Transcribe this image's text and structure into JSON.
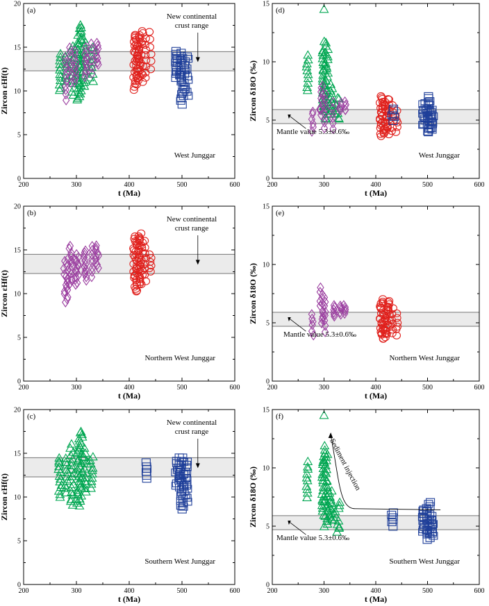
{
  "chart_data": [
    {
      "panel": "(a)",
      "type": "scatter",
      "title": "West Junggar",
      "xlabel": "t (Ma)",
      "ylabel": "Zircon εHf(t)",
      "xlim": [
        200,
        600
      ],
      "ylim": [
        0,
        20
      ],
      "xticks": [
        200,
        300,
        400,
        500,
        600
      ],
      "yticks": [
        0,
        5,
        10,
        15,
        20
      ],
      "band": {
        "y": [
          12.3,
          14.5
        ],
        "label_lines": [
          "New continental",
          "crust range"
        ]
      },
      "clusters": [
        {
          "color": "#00a651",
          "marker": "triangle",
          "ranges": [
            [
              268,
              270,
              10.0,
              14.3,
              12
            ],
            [
              278,
              282,
              11.0,
              14.0,
              8
            ],
            [
              290,
              296,
              9.5,
              15.2,
              14
            ],
            [
              300,
              310,
              9.0,
              17.5,
              40
            ],
            [
              312,
              318,
              10.5,
              16.0,
              14
            ],
            [
              325,
              332,
              11.0,
              15.0,
              10
            ]
          ]
        },
        {
          "color": "#9b3fa0",
          "marker": "diamond",
          "ranges": [
            [
              278,
              282,
              9.0,
              13.8,
              10
            ],
            [
              286,
              290,
              11.0,
              15.0,
              8
            ],
            [
              296,
              300,
              11.0,
              14.5,
              10
            ],
            [
              316,
              320,
              11.5,
              15.0,
              10
            ],
            [
              328,
              330,
              12.0,
              15.5,
              6
            ],
            [
              338,
              342,
              13.0,
              15.5,
              8
            ]
          ]
        },
        {
          "color": "#e0211d",
          "marker": "circle",
          "ranges": [
            [
              408,
              416,
              10.2,
              16.5,
              30
            ],
            [
              416,
              426,
              11.0,
              16.8,
              30
            ],
            [
              428,
              432,
              11.5,
              16.0,
              8
            ],
            [
              438,
              442,
              12.5,
              16.8,
              6
            ]
          ]
        },
        {
          "color": "#1f3f99",
          "marker": "square",
          "ranges": [
            [
              488,
              496,
              11.5,
              14.5,
              14
            ],
            [
              496,
              504,
              8.5,
              14.3,
              22
            ],
            [
              504,
              512,
              9.5,
              14.0,
              14
            ]
          ]
        }
      ]
    },
    {
      "panel": "(b)",
      "type": "scatter",
      "title": "Northern West Junggar",
      "xlabel": "t (Ma)",
      "ylabel": "Zircon εHf(t)",
      "xlim": [
        200,
        600
      ],
      "ylim": [
        0,
        20
      ],
      "xticks": [
        200,
        300,
        400,
        500,
        600
      ],
      "yticks": [
        0,
        5,
        10,
        15,
        20
      ],
      "band": {
        "y": [
          12.3,
          14.5
        ],
        "label_lines": [
          "New continental",
          "crust range"
        ]
      },
      "clusters": [
        {
          "color": "#9b3fa0",
          "marker": "diamond",
          "ranges": [
            [
              276,
              284,
              9.0,
              14.0,
              18
            ],
            [
              286,
              292,
              11.0,
              15.5,
              12
            ],
            [
              296,
              304,
              11.0,
              14.5,
              14
            ],
            [
              314,
              320,
              11.5,
              15.0,
              12
            ],
            [
              328,
              332,
              12.0,
              15.5,
              8
            ],
            [
              336,
              342,
              13.0,
              15.5,
              10
            ]
          ]
        },
        {
          "color": "#e0211d",
          "marker": "circle",
          "ranges": [
            [
              408,
              416,
              10.2,
              16.5,
              30
            ],
            [
              416,
              426,
              11.0,
              16.8,
              30
            ],
            [
              428,
              432,
              11.5,
              16.0,
              8
            ],
            [
              438,
              442,
              12.5,
              14.5,
              6
            ]
          ]
        }
      ]
    },
    {
      "panel": "(c)",
      "type": "scatter",
      "title": "Southern West Junggar",
      "xlabel": "t (Ma)",
      "ylabel": "Zircon εHf(t)",
      "xlim": [
        200,
        600
      ],
      "ylim": [
        0,
        20
      ],
      "xticks": [
        200,
        300,
        400,
        500,
        600
      ],
      "yticks": [
        0,
        5,
        10,
        15,
        20
      ],
      "band": {
        "y": [
          12.3,
          14.5
        ],
        "label_lines": [
          "New continental",
          "crust range"
        ]
      },
      "clusters": [
        {
          "color": "#00a651",
          "marker": "triangle",
          "ranges": [
            [
              266,
              272,
              10.0,
              14.5,
              14
            ],
            [
              278,
              284,
              10.5,
              14.5,
              10
            ],
            [
              288,
              296,
              9.0,
              16.0,
              18
            ],
            [
              300,
              312,
              9.0,
              17.5,
              40
            ],
            [
              314,
              320,
              10.5,
              15.5,
              12
            ],
            [
              326,
              332,
              11.0,
              14.5,
              10
            ]
          ]
        },
        {
          "color": "#1f3f99",
          "marker": "square",
          "ranges": [
            [
              432,
              434,
              12.0,
              14.0,
              6
            ],
            [
              488,
              496,
              11.0,
              14.5,
              14
            ],
            [
              496,
              504,
              8.5,
              14.5,
              22
            ],
            [
              504,
              512,
              9.5,
              14.0,
              14
            ]
          ]
        }
      ]
    },
    {
      "panel": "(d)",
      "type": "scatter",
      "title": "West Junggar",
      "xlabel": "t (Ma)",
      "ylabel": "Zircon δ18O (‰)",
      "xlim": [
        200,
        600
      ],
      "ylim": [
        0,
        15
      ],
      "xticks": [
        200,
        300,
        400,
        500,
        600
      ],
      "yticks": [
        0,
        5,
        10,
        15
      ],
      "band": {
        "y": [
          4.7,
          5.9
        ],
        "label_lines": [
          "Mantle value 5.3±0.6‰"
        ]
      },
      "clusters": [
        {
          "color": "#00a651",
          "marker": "triangle",
          "ranges": [
            [
              266,
              270,
              7.5,
              10.5,
              10
            ],
            [
              296,
              300,
              6.0,
              11.0,
              20
            ],
            [
              300,
              308,
              5.0,
              11.8,
              30
            ],
            [
              300,
              300,
              14.5,
              14.5,
              1
            ],
            [
              310,
              316,
              5.5,
              8.0,
              12
            ],
            [
              320,
              330,
              5.0,
              7.0,
              10
            ]
          ]
        },
        {
          "color": "#9b3fa0",
          "marker": "diamond",
          "ranges": [
            [
              276,
              280,
              4.0,
              5.8,
              6
            ],
            [
              292,
              298,
              5.5,
              8.0,
              10
            ],
            [
              300,
              304,
              4.3,
              7.2,
              8
            ],
            [
              316,
              318,
              4.2,
              6.5,
              6
            ],
            [
              330,
              334,
              5.8,
              6.5,
              5
            ],
            [
              340,
              344,
              5.8,
              6.5,
              5
            ]
          ]
        },
        {
          "color": "#e0211d",
          "marker": "circle",
          "ranges": [
            [
              408,
              416,
              3.6,
              7.0,
              25
            ],
            [
              416,
              426,
              3.8,
              6.8,
              25
            ],
            [
              430,
              434,
              4.0,
              6.2,
              6
            ],
            [
              438,
              442,
              4.0,
              5.8,
              6
            ]
          ]
        },
        {
          "color": "#1f3f99",
          "marker": "square",
          "ranges": [
            [
              430,
              436,
              5.0,
              6.0,
              5
            ],
            [
              490,
              496,
              4.5,
              6.5,
              10
            ],
            [
              498,
              506,
              3.9,
              7.0,
              20
            ],
            [
              506,
              512,
              4.2,
              5.8,
              10
            ]
          ]
        }
      ]
    },
    {
      "panel": "(e)",
      "type": "scatter",
      "title": "Northern West Junggar",
      "xlabel": "t (Ma)",
      "ylabel": "Zircon δ18O (‰)",
      "xlim": [
        200,
        600
      ],
      "ylim": [
        0,
        15
      ],
      "xticks": [
        200,
        300,
        400,
        500,
        600
      ],
      "yticks": [
        0,
        5,
        10,
        15
      ],
      "band": {
        "y": [
          4.7,
          5.9
        ],
        "label_lines": [
          "Mantle value 5.3±0.6‰"
        ]
      },
      "clusters": [
        {
          "color": "#9b3fa0",
          "marker": "diamond",
          "ranges": [
            [
              276,
              280,
              4.0,
              5.8,
              6
            ],
            [
              292,
              298,
              5.0,
              8.0,
              12
            ],
            [
              300,
              304,
              4.3,
              7.2,
              8
            ],
            [
              318,
              322,
              5.5,
              6.5,
              6
            ],
            [
              330,
              334,
              5.8,
              6.5,
              5
            ],
            [
              338,
              342,
              5.8,
              6.5,
              5
            ]
          ]
        },
        {
          "color": "#e0211d",
          "marker": "circle",
          "ranges": [
            [
              408,
              416,
              3.6,
              7.0,
              25
            ],
            [
              416,
              426,
              3.8,
              6.8,
              25
            ],
            [
              430,
              434,
              4.0,
              6.2,
              6
            ],
            [
              438,
              442,
              4.0,
              5.8,
              6
            ]
          ]
        }
      ]
    },
    {
      "panel": "(f)",
      "type": "scatter",
      "title": "Southern West Junggar",
      "xlabel": "t (Ma)",
      "ylabel": "Zircon δ18O (‰)",
      "xlim": [
        200,
        600
      ],
      "ylim": [
        0,
        15
      ],
      "xticks": [
        200,
        300,
        400,
        500,
        600
      ],
      "yticks": [
        0,
        5,
        10,
        15
      ],
      "band": {
        "y": [
          4.7,
          5.9
        ],
        "label_lines": [
          "Mantle value 5.3±0.6‰"
        ]
      },
      "annotation": "Sediment injection",
      "annotation_curve": [
        [
          525,
          6.4
        ],
        [
          360,
          6.5
        ],
        [
          330,
          8.8
        ],
        [
          313,
          12.8
        ]
      ],
      "clusters": [
        {
          "color": "#00a651",
          "marker": "triangle",
          "ranges": [
            [
              266,
              270,
              7.5,
              10.5,
              10
            ],
            [
              296,
              300,
              6.0,
              11.0,
              20
            ],
            [
              300,
              308,
              5.0,
              11.8,
              30
            ],
            [
              300,
              300,
              14.5,
              14.5,
              1
            ],
            [
              310,
              316,
              5.5,
              8.0,
              12
            ],
            [
              320,
              332,
              4.5,
              7.0,
              12
            ]
          ]
        },
        {
          "color": "#1f3f99",
          "marker": "square",
          "ranges": [
            [
              430,
              436,
              5.0,
              6.2,
              6
            ],
            [
              490,
              496,
              4.5,
              6.5,
              10
            ],
            [
              498,
              506,
              3.9,
              7.0,
              20
            ],
            [
              506,
              512,
              4.2,
              5.8,
              10
            ]
          ]
        }
      ]
    }
  ]
}
